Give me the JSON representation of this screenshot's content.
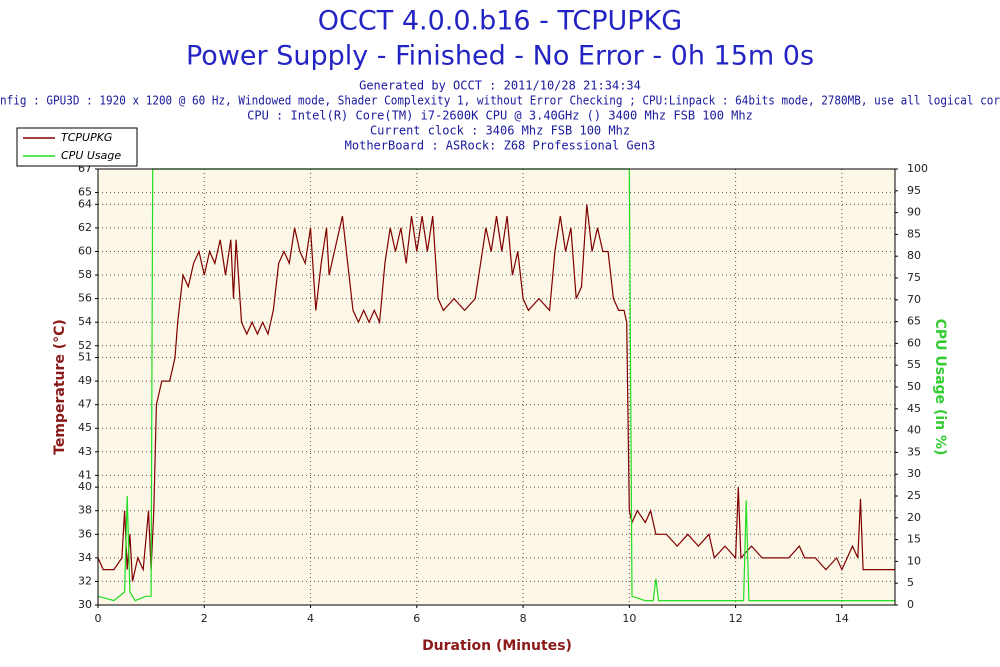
{
  "chart_data": {
    "type": "line",
    "title": "OCCT 4.0.0.b16 - TCPUPKG",
    "subtitle": "Power Supply - Finished - No Error - 0h 15m 0s",
    "info": [
      "Generated by OCCT : 2011/10/28 21:34:34",
      "nfig : GPU3D : 1920 x 1200 @ 60 Hz, Windowed mode, Shader Complexity 1, without Error Checking ; CPU:Linpack : 64bits mode, 2780MB, use all logical cor",
      "CPU : Intel(R) Core(TM) i7-2600K CPU @ 3.40GHz () 3400 Mhz FSB 100 Mhz",
      "Current clock : 3406 Mhz FSB 100 Mhz",
      "MotherBoard : ASRock: Z68 Professional Gen3"
    ],
    "xlabel": "Duration (Minutes)",
    "ylabel": "Temperature (°C)",
    "y2label": "CPU Usage (in %)",
    "xlim": [
      0,
      15
    ],
    "xticks": [
      0,
      2,
      4,
      6,
      8,
      10,
      12,
      14
    ],
    "ylim": [
      30,
      67
    ],
    "yticks": [
      30,
      32,
      34,
      36,
      38,
      40,
      41,
      43,
      45,
      47,
      49,
      51,
      52,
      54,
      56,
      58,
      60,
      62,
      64,
      65,
      67
    ],
    "y2lim": [
      0,
      100
    ],
    "y2ticks": [
      0,
      5,
      10,
      15,
      20,
      25,
      30,
      35,
      40,
      45,
      50,
      55,
      60,
      65,
      70,
      75,
      80,
      85,
      90,
      95,
      100
    ],
    "grid": true,
    "legend": "top-left",
    "series": [
      {
        "name": "TCPUPKG",
        "color": "#800000",
        "x": [
          0,
          0.1,
          0.3,
          0.45,
          0.5,
          0.55,
          0.6,
          0.65,
          0.75,
          0.85,
          0.95,
          1.0,
          1.05,
          1.1,
          1.2,
          1.35,
          1.45,
          1.5,
          1.6,
          1.7,
          1.8,
          1.9,
          2.0,
          2.1,
          2.2,
          2.3,
          2.4,
          2.5,
          2.55,
          2.6,
          2.7,
          2.8,
          2.9,
          3.0,
          3.1,
          3.2,
          3.3,
          3.4,
          3.5,
          3.6,
          3.7,
          3.8,
          3.9,
          4.0,
          4.1,
          4.2,
          4.3,
          4.35,
          4.45,
          4.55,
          4.6,
          4.7,
          4.8,
          4.9,
          5.0,
          5.1,
          5.2,
          5.3,
          5.4,
          5.5,
          5.6,
          5.7,
          5.8,
          5.9,
          6.0,
          6.1,
          6.2,
          6.3,
          6.4,
          6.5,
          6.7,
          6.9,
          7.1,
          7.2,
          7.3,
          7.4,
          7.5,
          7.6,
          7.7,
          7.8,
          7.9,
          8.0,
          8.1,
          8.3,
          8.5,
          8.6,
          8.7,
          8.8,
          8.9,
          9.0,
          9.1,
          9.2,
          9.3,
          9.4,
          9.5,
          9.6,
          9.7,
          9.8,
          9.9,
          9.95,
          10.0,
          10.05,
          10.15,
          10.3,
          10.4,
          10.5,
          10.7,
          10.9,
          11.1,
          11.3,
          11.5,
          11.6,
          11.8,
          12.0,
          12.05,
          12.1,
          12.3,
          12.5,
          12.8,
          13.0,
          13.2,
          13.3,
          13.5,
          13.7,
          13.9,
          14.0,
          14.2,
          14.3,
          14.35,
          14.4,
          14.6,
          14.8,
          15.0
        ],
        "values": [
          34,
          33,
          33,
          34,
          38,
          33,
          36,
          32,
          34,
          33,
          38,
          33,
          38,
          47,
          49,
          49,
          51,
          54,
          58,
          57,
          59,
          60,
          58,
          60,
          59,
          61,
          58,
          61,
          56,
          61,
          54,
          53,
          54,
          53,
          54,
          53,
          55,
          59,
          60,
          59,
          62,
          60,
          59,
          62,
          55,
          59,
          62,
          58,
          60,
          62,
          63,
          59,
          55,
          54,
          55,
          54,
          55,
          54,
          59,
          62,
          60,
          62,
          59,
          63,
          60,
          63,
          60,
          63,
          56,
          55,
          56,
          55,
          56,
          59,
          62,
          60,
          63,
          60,
          63,
          58,
          60,
          56,
          55,
          56,
          55,
          60,
          63,
          60,
          62,
          56,
          57,
          64,
          60,
          62,
          60,
          60,
          56,
          55,
          55,
          54,
          38,
          37,
          38,
          37,
          38,
          36,
          36,
          35,
          36,
          35,
          36,
          34,
          35,
          34,
          40,
          34,
          35,
          34,
          34,
          34,
          35,
          34,
          34,
          33,
          34,
          33,
          35,
          34,
          39,
          33,
          33,
          33,
          33
        ]
      },
      {
        "name": "CPU Usage",
        "color": "#22dd22",
        "axis": "y2",
        "x": [
          0,
          0.3,
          0.5,
          0.55,
          0.6,
          0.7,
          0.9,
          1.0,
          1.03,
          5.0,
          9.95,
          10.0,
          10.05,
          10.3,
          10.45,
          10.5,
          10.55,
          11.0,
          12.0,
          12.15,
          12.2,
          12.25,
          13.0,
          14.0,
          15.0
        ],
        "values": [
          2,
          1,
          3,
          25,
          3,
          1,
          2,
          2,
          100,
          100,
          100,
          100,
          2,
          1,
          1,
          6,
          1,
          1,
          1,
          1,
          24,
          1,
          1,
          1,
          1
        ]
      }
    ]
  }
}
